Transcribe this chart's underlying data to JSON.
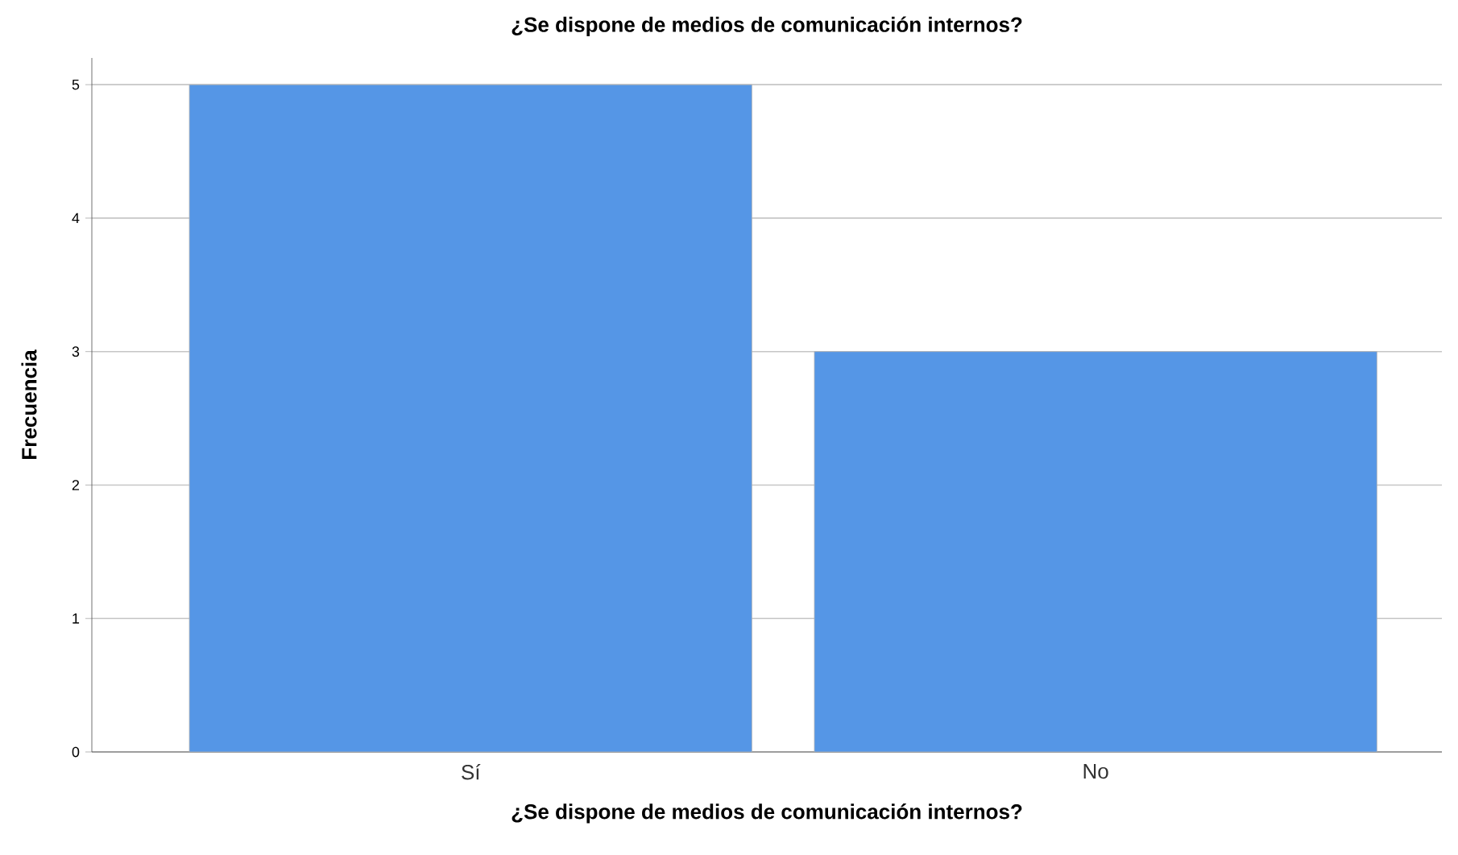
{
  "chart_data": {
    "type": "bar",
    "title": "¿Se dispone de medios de comunicación internos?",
    "xlabel": "¿Se dispone de medios de comunicación internos?",
    "ylabel": "Frecuencia",
    "categories": [
      "Sí",
      "No"
    ],
    "values": [
      5,
      3
    ],
    "color": "#5596e6",
    "ylim": [
      0,
      5.2
    ],
    "yticks": [
      0,
      1,
      2,
      3,
      4,
      5
    ],
    "grid": "y"
  }
}
